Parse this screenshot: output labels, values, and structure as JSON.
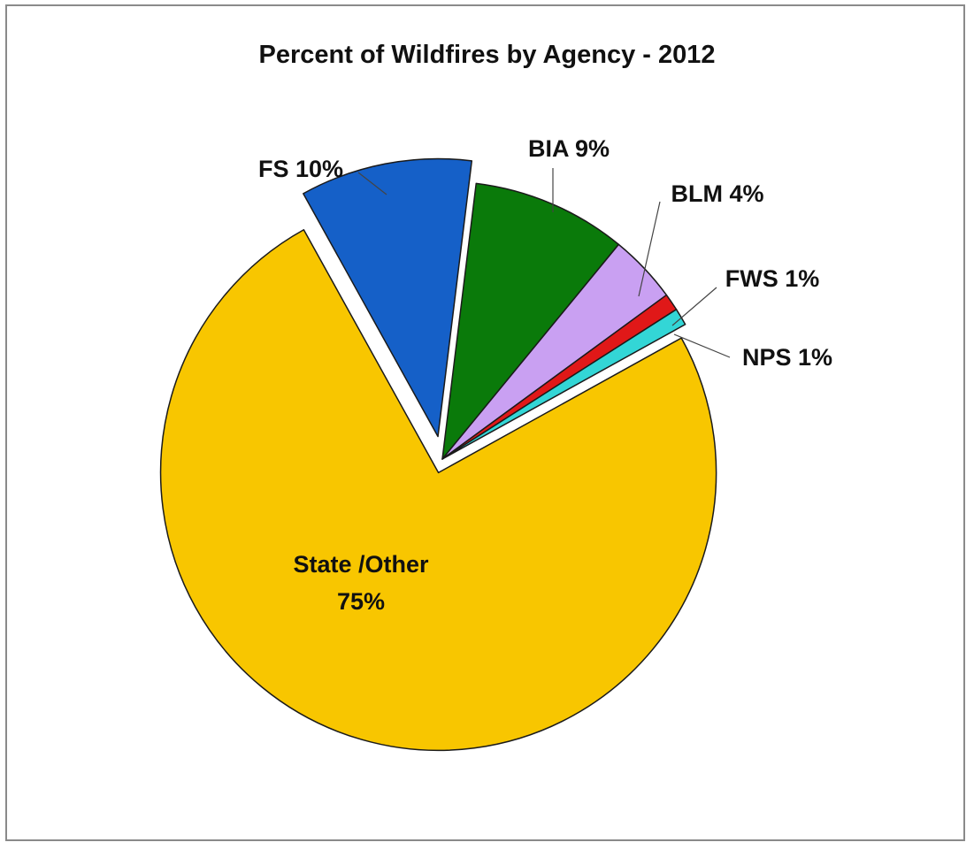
{
  "chart_data": {
    "type": "pie",
    "title": "Percent of Wildfires by Agency - 2012",
    "slices": [
      {
        "label": "BIA 9%",
        "value": 9,
        "color": "#0a7a0a"
      },
      {
        "label": "BLM 4%",
        "value": 4,
        "color": "#c9a0f2"
      },
      {
        "label": "FWS 1%",
        "value": 1,
        "color": "#e01818"
      },
      {
        "label": "NPS 1%",
        "value": 1,
        "color": "#33d6d6"
      },
      {
        "label": "State /Other 75%",
        "label_lines": [
          "State /Other",
          "75%"
        ],
        "value": 75,
        "color": "#f8c600"
      },
      {
        "label": "FS 10%",
        "value": 10,
        "color": "#1560c8"
      }
    ],
    "exploded": [
      "State /Other 75%",
      "FS 10%"
    ],
    "legend": "none"
  }
}
